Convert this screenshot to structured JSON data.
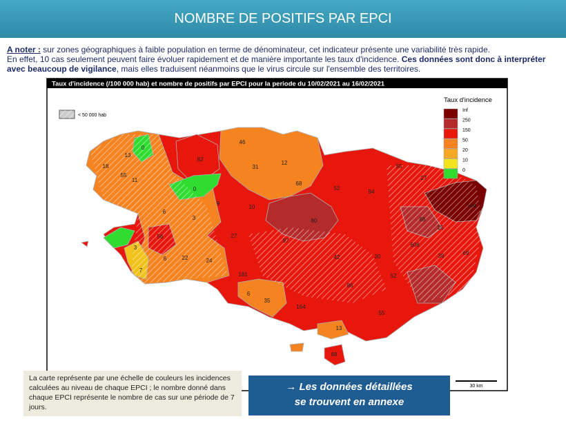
{
  "header": {
    "title": "NOMBRE DE POSITIFS PAR EPCI"
  },
  "note": {
    "label": "A noter :",
    "line1": " sur zones géographiques à faible population en terme de dénominateur, cet indicateur présente une variabilité très rapide.",
    "line2_start": "En effet, 10 cas seulement peuvent faire évoluer rapidement et de manière importante les taux d'incidence. ",
    "line2_bold": "Ces données sont donc à interpréter avec beaucoup de vigilance",
    "line2_end": ", mais elles traduisent néanmoins que le virus circule sur l'ensemble des territoires."
  },
  "map": {
    "title": "Taux d'incidence (/100 000 hab) et nombre de positifs par EPCI pour la periode du 10/02/2021 au 16/02/2021",
    "hatch_legend": "< 50 000 hab",
    "legend_title": "Taux d'incidence",
    "legend": [
      {
        "label": "Inf",
        "color": "#7a0000"
      },
      {
        "label": "250",
        "color": "#b52a2a"
      },
      {
        "label": "150",
        "color": "#e8170e"
      },
      {
        "label": "50",
        "color": "#f5831f"
      },
      {
        "label": "20",
        "color": "#f7a823"
      },
      {
        "label": "10",
        "color": "#f2e31c"
      },
      {
        "label": "0",
        "color": "#2fdc2f"
      }
    ],
    "labels": [
      0,
      13,
      18,
      55,
      11,
      82,
      46,
      31,
      12,
      68,
      0,
      55,
      27,
      52,
      94,
      6,
      3,
      9,
      10,
      80,
      144,
      66,
      15,
      608,
      69,
      39,
      27,
      97,
      42,
      30,
      52,
      86,
      56,
      3,
      6,
      22,
      24,
      7,
      181,
      6,
      35,
      164,
      55,
      13,
      68
    ],
    "scale": "30 km"
  },
  "footer": {
    "explanation": "La carte représente par une échelle de couleurs les incidences calculées au niveau de chaque EPCI ; le nombre donné dans chaque EPCI représente le nombre de cas sur une période de 7 jours.",
    "button": [
      "→ Les données détaillées",
      "se trouvent en annexe"
    ]
  }
}
